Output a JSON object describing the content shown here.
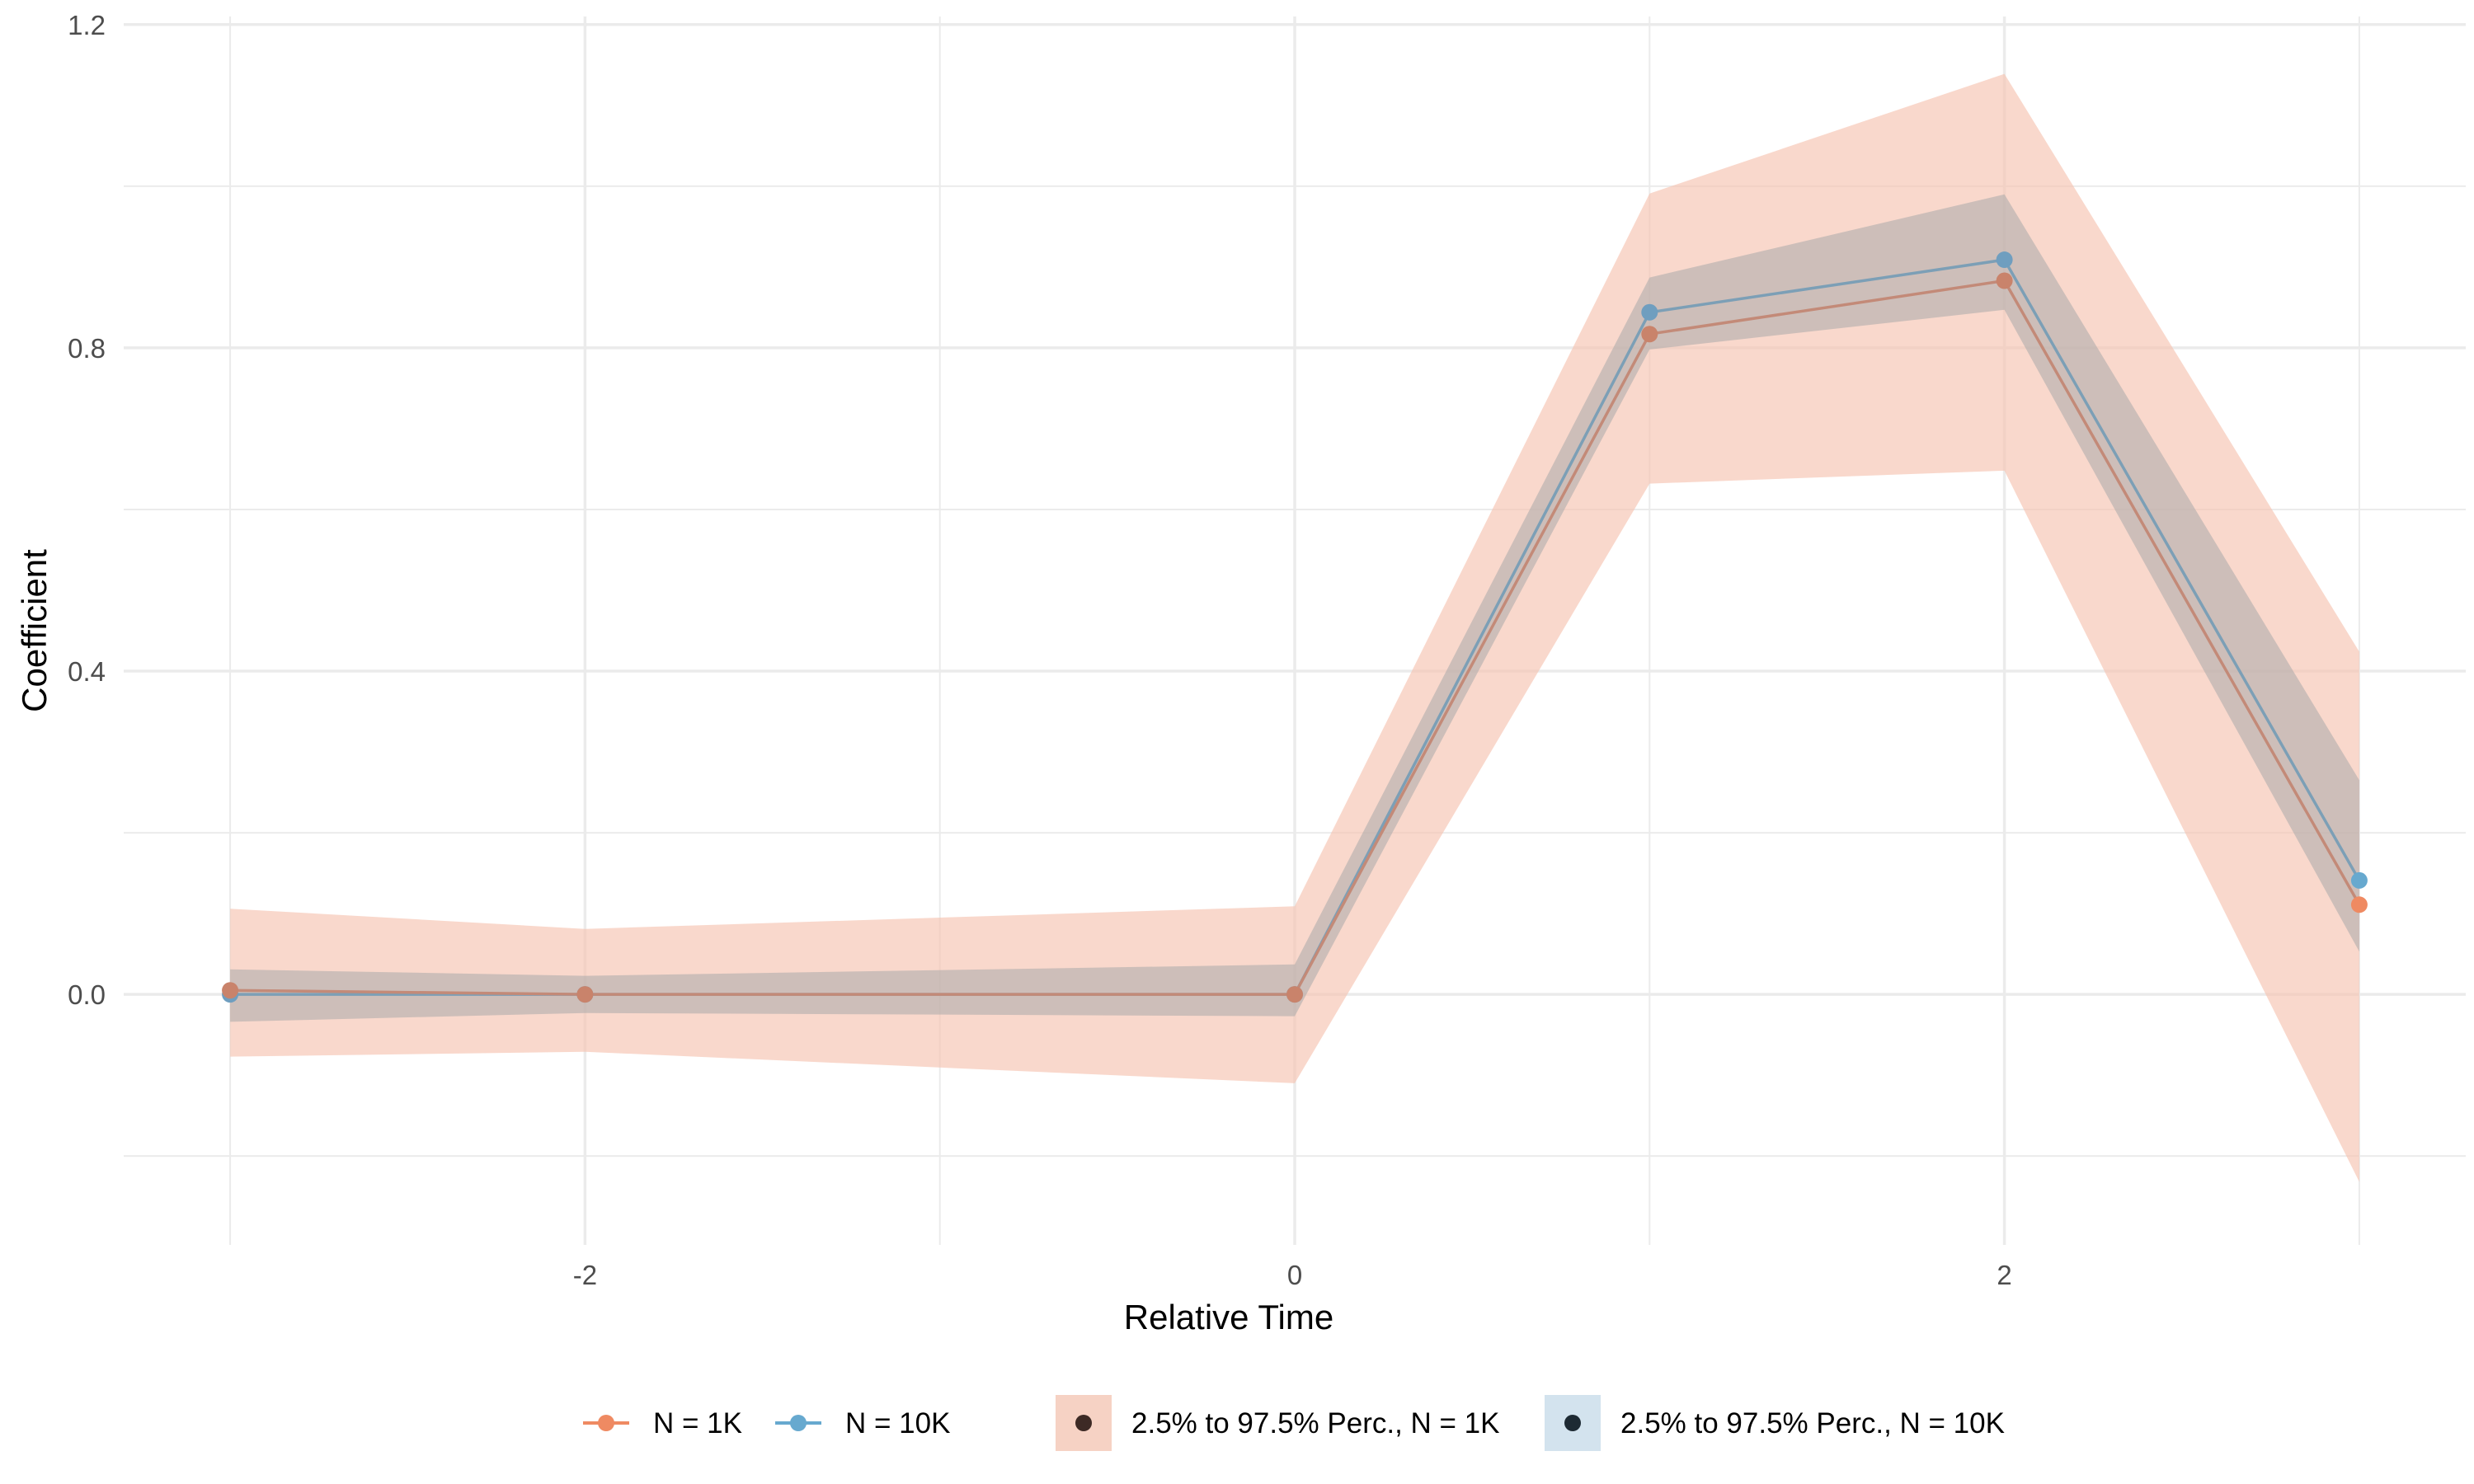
{
  "chart_data": {
    "type": "line",
    "xlabel": "Relative Time",
    "ylabel": "Coefficient",
    "xlim": [
      -3.3,
      3.3
    ],
    "ylim": [
      -0.31,
      1.21
    ],
    "x_ticks": [
      -2,
      0,
      2
    ],
    "x_tick_labels": [
      "-2",
      "0",
      "2"
    ],
    "x_minor_grid": [
      -3,
      -1,
      1,
      3
    ],
    "y_ticks": [
      0.0,
      0.4,
      0.8,
      1.2
    ],
    "y_tick_labels": [
      "0.0",
      "0.4",
      "0.8",
      "1.2"
    ],
    "y_minor_grid": [
      -0.2,
      0.2,
      0.6,
      1.0
    ],
    "grid": true,
    "legend_position": "bottom",
    "colors": {
      "n1k_line": "#ef8a62",
      "n10k_line": "#67a9cf",
      "n1k_band": "#f6c3b1",
      "n10k_band": "#c2d8e7",
      "overlap_band": "#d0d0d0",
      "grid": "#ebebeb"
    },
    "x": [
      -3,
      -2,
      0,
      1,
      2,
      3
    ],
    "series": [
      {
        "name": "N = 1K",
        "values": [
          0.005,
          0.0,
          0.0,
          0.817,
          0.883,
          0.111
        ],
        "band_name": "2.5% to 97.5% Perc., N = 1K",
        "lower": [
          -0.077,
          -0.071,
          -0.11,
          0.632,
          0.648,
          -0.232
        ],
        "upper": [
          0.106,
          0.081,
          0.109,
          0.991,
          1.139,
          0.424
        ]
      },
      {
        "name": "N = 10K",
        "values": [
          0.0,
          0.0,
          0.0,
          0.844,
          0.909,
          0.141
        ],
        "band_name": "2.5% to 97.5% Perc., N = 10K",
        "lower": [
          -0.034,
          -0.023,
          -0.027,
          0.798,
          0.847,
          0.053
        ],
        "upper": [
          0.031,
          0.023,
          0.037,
          0.887,
          0.99,
          0.265
        ]
      }
    ]
  },
  "legend": {
    "items": [
      {
        "label": "N = 1K",
        "kind": "line",
        "color": "#ef8a62"
      },
      {
        "label": "N = 10K",
        "kind": "line",
        "color": "#67a9cf"
      },
      {
        "label": "2.5% to 97.5% Perc., N = 1K",
        "kind": "band",
        "fill": "#f6d2c4",
        "dot": "#3d2a25"
      },
      {
        "label": "2.5% to 97.5% Perc., N = 10K",
        "kind": "band",
        "fill": "#d3e3ee",
        "dot": "#1d2a33"
      }
    ]
  }
}
